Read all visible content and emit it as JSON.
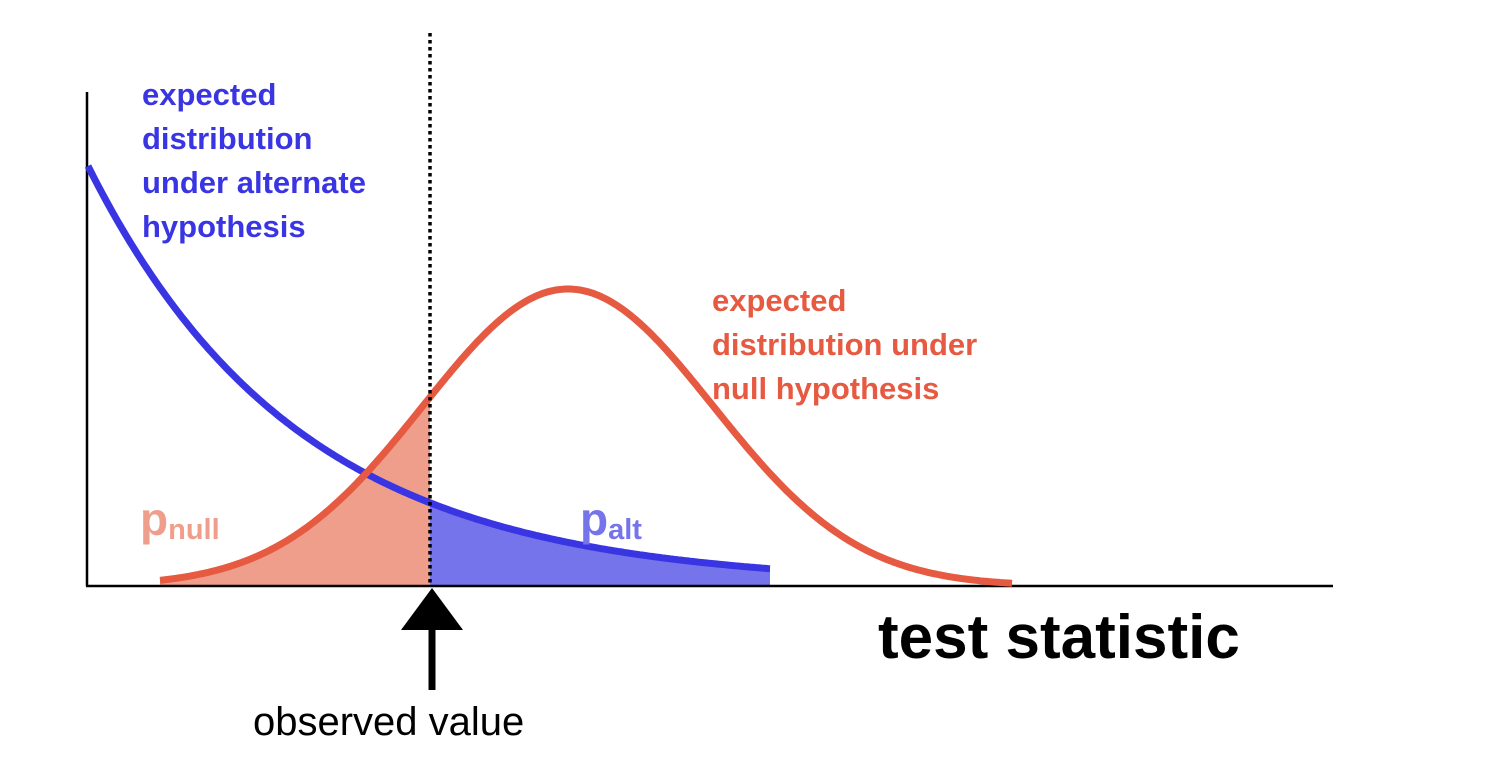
{
  "colors": {
    "alternate": "#3a35e3",
    "alternate_fill": "#7674ea",
    "null": "#e65a42",
    "null_fill": "#ef9e8c",
    "axis": "#000000"
  },
  "labels": {
    "alternate": [
      "expected",
      "distribution",
      "under alternate",
      "hypothesis"
    ],
    "null": [
      "expected",
      "distribution under",
      "null hypothesis"
    ],
    "p_null_main": "p",
    "p_null_sub": "null",
    "p_alt_main": "p",
    "p_alt_sub": "alt",
    "x_axis": "test statistic",
    "observed": "observed value"
  }
}
